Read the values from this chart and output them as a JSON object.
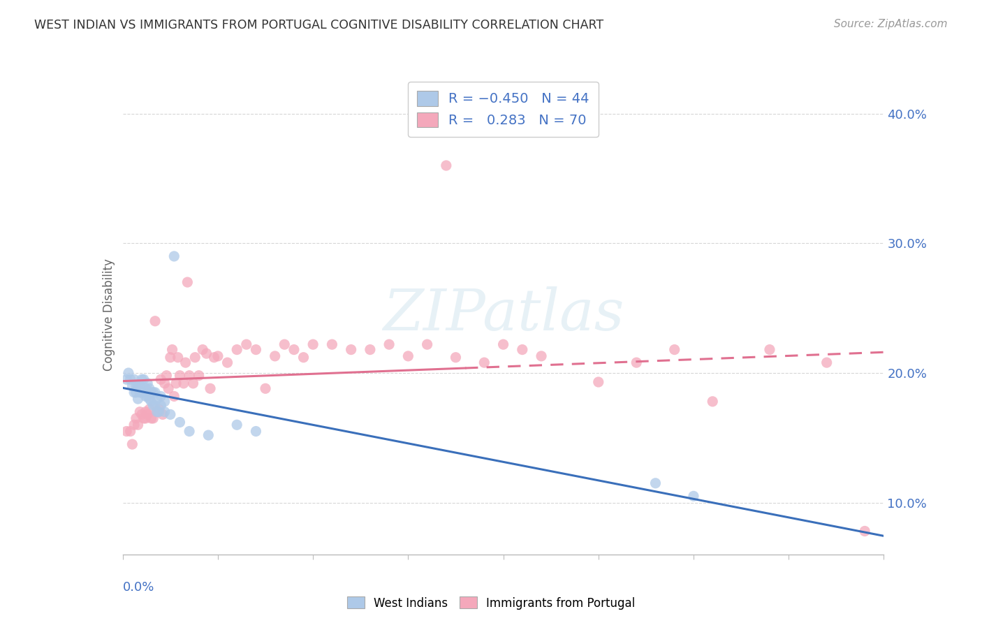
{
  "title": "WEST INDIAN VS IMMIGRANTS FROM PORTUGAL COGNITIVE DISABILITY CORRELATION CHART",
  "source_text": "Source: ZipAtlas.com",
  "ylabel": "Cognitive Disability",
  "xlim": [
    0.0,
    0.4
  ],
  "ylim": [
    0.06,
    0.43
  ],
  "yticks": [
    0.1,
    0.2,
    0.3,
    0.4
  ],
  "ytick_labels": [
    "10.0%",
    "20.0%",
    "30.0%",
    "40.0%"
  ],
  "watermark": "ZIPatlas",
  "color_blue": "#aec9e8",
  "color_blue_line": "#3a6fba",
  "color_pink": "#f4a8bb",
  "color_pink_line": "#e07090",
  "color_text": "#4472c4",
  "background_color": "#ffffff",
  "west_indians_x": [
    0.002,
    0.003,
    0.004,
    0.005,
    0.006,
    0.006,
    0.007,
    0.007,
    0.008,
    0.008,
    0.009,
    0.009,
    0.01,
    0.01,
    0.011,
    0.011,
    0.012,
    0.012,
    0.013,
    0.013,
    0.014,
    0.014,
    0.015,
    0.015,
    0.016,
    0.016,
    0.017,
    0.017,
    0.018,
    0.018,
    0.019,
    0.02,
    0.02,
    0.022,
    0.022,
    0.025,
    0.027,
    0.03,
    0.035,
    0.045,
    0.06,
    0.07,
    0.28,
    0.3
  ],
  "west_indians_y": [
    0.195,
    0.2,
    0.195,
    0.19,
    0.185,
    0.195,
    0.185,
    0.19,
    0.18,
    0.19,
    0.185,
    0.19,
    0.185,
    0.195,
    0.185,
    0.195,
    0.182,
    0.188,
    0.182,
    0.192,
    0.18,
    0.188,
    0.178,
    0.185,
    0.175,
    0.185,
    0.175,
    0.185,
    0.17,
    0.18,
    0.17,
    0.175,
    0.182,
    0.17,
    0.178,
    0.168,
    0.29,
    0.162,
    0.155,
    0.152,
    0.16,
    0.155,
    0.115,
    0.105
  ],
  "portugal_x": [
    0.002,
    0.004,
    0.005,
    0.006,
    0.007,
    0.008,
    0.009,
    0.01,
    0.011,
    0.012,
    0.012,
    0.013,
    0.014,
    0.015,
    0.016,
    0.017,
    0.018,
    0.019,
    0.02,
    0.021,
    0.022,
    0.023,
    0.024,
    0.025,
    0.026,
    0.027,
    0.028,
    0.029,
    0.03,
    0.032,
    0.033,
    0.034,
    0.035,
    0.037,
    0.038,
    0.04,
    0.042,
    0.044,
    0.046,
    0.048,
    0.05,
    0.055,
    0.06,
    0.065,
    0.07,
    0.075,
    0.08,
    0.085,
    0.09,
    0.095,
    0.1,
    0.11,
    0.12,
    0.13,
    0.14,
    0.15,
    0.16,
    0.17,
    0.175,
    0.19,
    0.2,
    0.21,
    0.22,
    0.25,
    0.27,
    0.29,
    0.31,
    0.34,
    0.37,
    0.39
  ],
  "portugal_y": [
    0.155,
    0.155,
    0.145,
    0.16,
    0.165,
    0.16,
    0.17,
    0.168,
    0.165,
    0.17,
    0.165,
    0.168,
    0.172,
    0.165,
    0.165,
    0.24,
    0.17,
    0.172,
    0.195,
    0.168,
    0.192,
    0.198,
    0.188,
    0.212,
    0.218,
    0.182,
    0.192,
    0.212,
    0.198,
    0.192,
    0.208,
    0.27,
    0.198,
    0.192,
    0.212,
    0.198,
    0.218,
    0.215,
    0.188,
    0.212,
    0.213,
    0.208,
    0.218,
    0.222,
    0.218,
    0.188,
    0.213,
    0.222,
    0.218,
    0.212,
    0.222,
    0.222,
    0.218,
    0.218,
    0.222,
    0.213,
    0.222,
    0.36,
    0.212,
    0.208,
    0.222,
    0.218,
    0.213,
    0.193,
    0.208,
    0.218,
    0.178,
    0.218,
    0.208,
    0.078
  ]
}
